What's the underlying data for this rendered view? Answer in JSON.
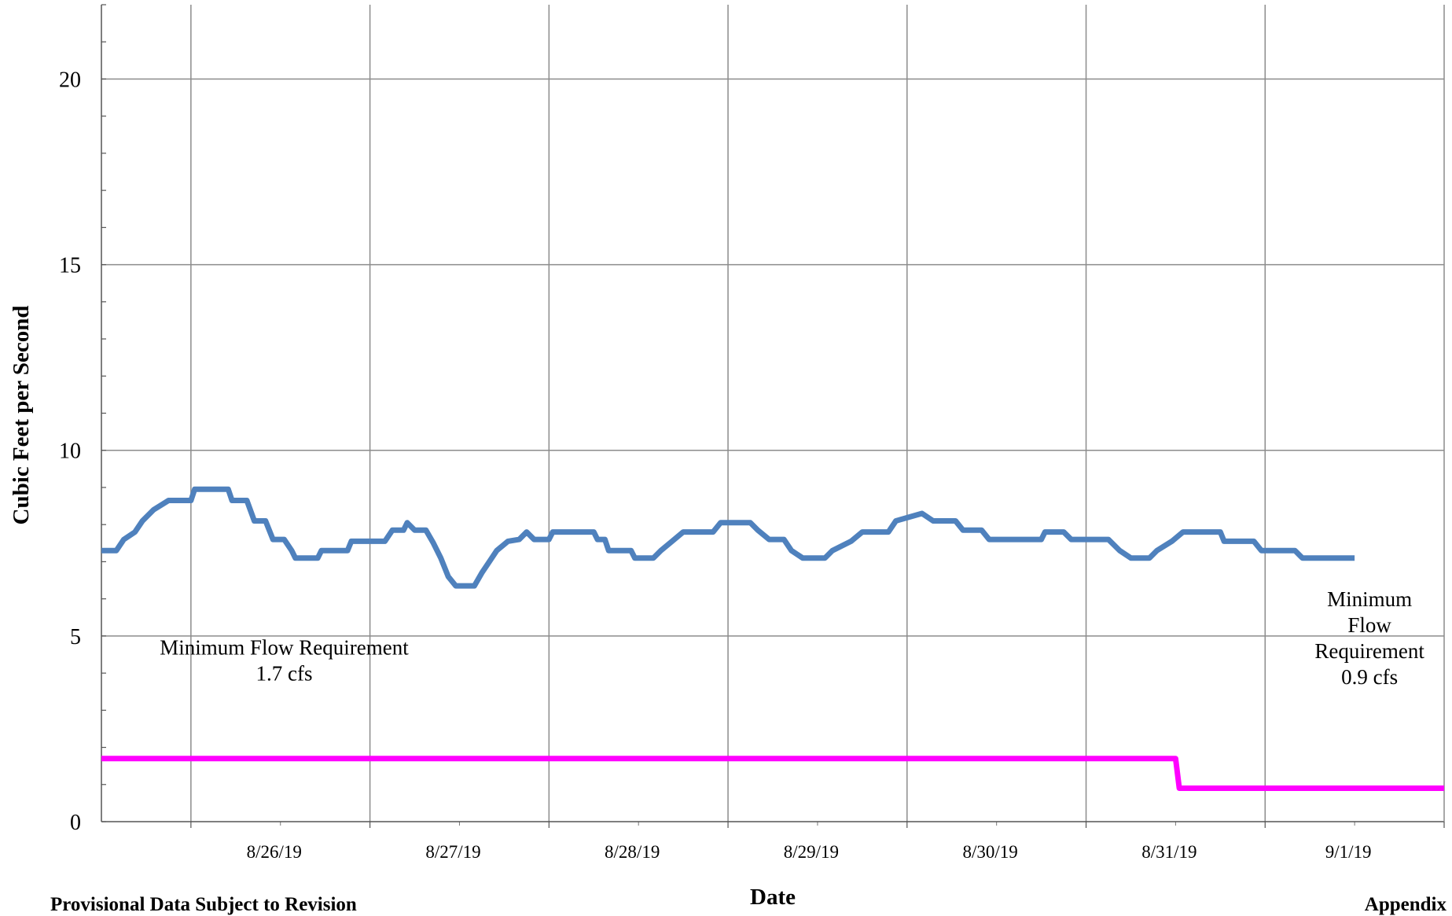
{
  "chart_data": {
    "type": "line",
    "title": "",
    "xlabel": "Date",
    "ylabel": "Cubic Feet per Second",
    "ylim": [
      0,
      22
    ],
    "yticks": [
      0,
      5,
      10,
      15,
      20
    ],
    "xlim": [
      "8/25/19 12:00",
      "9/2/19 00:00"
    ],
    "xtick_labels": [
      "8/26/19",
      "8/27/19",
      "8/28/19",
      "8/29/19",
      "8/30/19",
      "8/31/19",
      "9/1/19"
    ],
    "grid": true,
    "series": [
      {
        "color": "#4f81bd",
        "points": [
          [
            "8/25/19 12:00",
            7.3
          ],
          [
            "8/25/19 14:00",
            7.3
          ],
          [
            "8/25/19 15:00",
            7.6
          ],
          [
            "8/25/19 16:30",
            7.8
          ],
          [
            "8/25/19 17:30",
            8.1
          ],
          [
            "8/25/19 19:00",
            8.4
          ],
          [
            "8/25/19 21:00",
            8.65
          ],
          [
            "8/26/19 00:00",
            8.65
          ],
          [
            "8/26/19 00:30",
            8.95
          ],
          [
            "8/26/19 05:00",
            8.95
          ],
          [
            "8/26/19 05:30",
            8.65
          ],
          [
            "8/26/19 07:30",
            8.65
          ],
          [
            "8/26/19 08:30",
            8.1
          ],
          [
            "8/26/19 10:00",
            8.1
          ],
          [
            "8/26/19 11:00",
            7.6
          ],
          [
            "8/26/19 12:30",
            7.6
          ],
          [
            "8/26/19 13:30",
            7.3
          ],
          [
            "8/26/19 14:00",
            7.1
          ],
          [
            "8/26/19 17:00",
            7.1
          ],
          [
            "8/26/19 17:30",
            7.3
          ],
          [
            "8/26/19 21:00",
            7.3
          ],
          [
            "8/26/19 21:30",
            7.55
          ],
          [
            "8/27/19 02:00",
            7.55
          ],
          [
            "8/27/19 03:00",
            7.85
          ],
          [
            "8/27/19 04:30",
            7.85
          ],
          [
            "8/27/19 05:00",
            8.05
          ],
          [
            "8/27/19 06:00",
            7.85
          ],
          [
            "8/27/19 07:30",
            7.85
          ],
          [
            "8/27/19 08:30",
            7.5
          ],
          [
            "8/27/19 09:30",
            7.1
          ],
          [
            "8/27/19 10:30",
            6.6
          ],
          [
            "8/27/19 11:30",
            6.35
          ],
          [
            "8/27/19 14:00",
            6.35
          ],
          [
            "8/27/19 15:00",
            6.7
          ],
          [
            "8/27/19 16:00",
            7.0
          ],
          [
            "8/27/19 17:00",
            7.3
          ],
          [
            "8/27/19 18:30",
            7.55
          ],
          [
            "8/27/19 20:00",
            7.6
          ],
          [
            "8/27/19 21:00",
            7.8
          ],
          [
            "8/27/19 22:00",
            7.6
          ],
          [
            "8/28/19 00:00",
            7.6
          ],
          [
            "8/28/19 00:30",
            7.8
          ],
          [
            "8/28/19 06:00",
            7.8
          ],
          [
            "8/28/19 06:30",
            7.6
          ],
          [
            "8/28/19 07:30",
            7.6
          ],
          [
            "8/28/19 08:00",
            7.3
          ],
          [
            "8/28/19 11:00",
            7.3
          ],
          [
            "8/28/19 11:30",
            7.1
          ],
          [
            "8/28/19 14:00",
            7.1
          ],
          [
            "8/28/19 15:00",
            7.3
          ],
          [
            "8/28/19 16:30",
            7.55
          ],
          [
            "8/28/19 18:00",
            7.8
          ],
          [
            "8/28/19 22:00",
            7.8
          ],
          [
            "8/28/19 23:00",
            8.05
          ],
          [
            "8/29/19 03:00",
            8.05
          ],
          [
            "8/29/19 04:00",
            7.85
          ],
          [
            "8/29/19 05:30",
            7.6
          ],
          [
            "8/29/19 07:30",
            7.6
          ],
          [
            "8/29/19 08:30",
            7.3
          ],
          [
            "8/29/19 10:00",
            7.1
          ],
          [
            "8/29/19 13:00",
            7.1
          ],
          [
            "8/29/19 14:00",
            7.3
          ],
          [
            "8/29/19 16:30",
            7.55
          ],
          [
            "8/29/19 18:00",
            7.8
          ],
          [
            "8/29/19 21:30",
            7.8
          ],
          [
            "8/29/19 22:30",
            8.1
          ],
          [
            "8/30/19 02:00",
            8.3
          ],
          [
            "8/30/19 03:30",
            8.1
          ],
          [
            "8/30/19 06:30",
            8.1
          ],
          [
            "8/30/19 07:30",
            7.85
          ],
          [
            "8/30/19 10:00",
            7.85
          ],
          [
            "8/30/19 11:00",
            7.6
          ],
          [
            "8/30/19 18:00",
            7.6
          ],
          [
            "8/30/19 18:30",
            7.8
          ],
          [
            "8/30/19 21:00",
            7.8
          ],
          [
            "8/30/19 22:00",
            7.6
          ],
          [
            "8/31/19 03:00",
            7.6
          ],
          [
            "8/31/19 04:30",
            7.3
          ],
          [
            "8/31/19 06:00",
            7.1
          ],
          [
            "8/31/19 08:30",
            7.1
          ],
          [
            "8/31/19 09:30",
            7.3
          ],
          [
            "8/31/19 11:30",
            7.55
          ],
          [
            "8/31/19 13:00",
            7.8
          ],
          [
            "8/31/19 18:00",
            7.8
          ],
          [
            "8/31/19 18:30",
            7.55
          ],
          [
            "8/31/19 22:30",
            7.55
          ],
          [
            "8/31/19 23:30",
            7.3
          ],
          [
            "9/1/19 04:00",
            7.3
          ],
          [
            "9/1/19 05:00",
            7.1
          ],
          [
            "9/1/19 12:00",
            7.1
          ]
        ]
      },
      {
        "color": "#ff00ff",
        "points": [
          [
            "8/25/19 12:00",
            1.7
          ],
          [
            "8/31/19 12:00",
            1.7
          ],
          [
            "8/31/19 12:30",
            0.9
          ],
          [
            "9/2/19 00:00",
            0.9
          ]
        ]
      }
    ],
    "annotations": [
      {
        "lines": [
          "Minimum Flow Requirement",
          "1.7 cfs"
        ],
        "x": "8/26/19 12:30",
        "y": 4.5
      },
      {
        "lines": [
          "Minimum",
          "Flow",
          "Requirement",
          "0.9 cfs"
        ],
        "x": "9/1/19 14:00",
        "y": 5.8
      }
    ]
  },
  "footer": {
    "left_note": "Provisional Data Subject to Revision",
    "right_note": "Appendix"
  }
}
